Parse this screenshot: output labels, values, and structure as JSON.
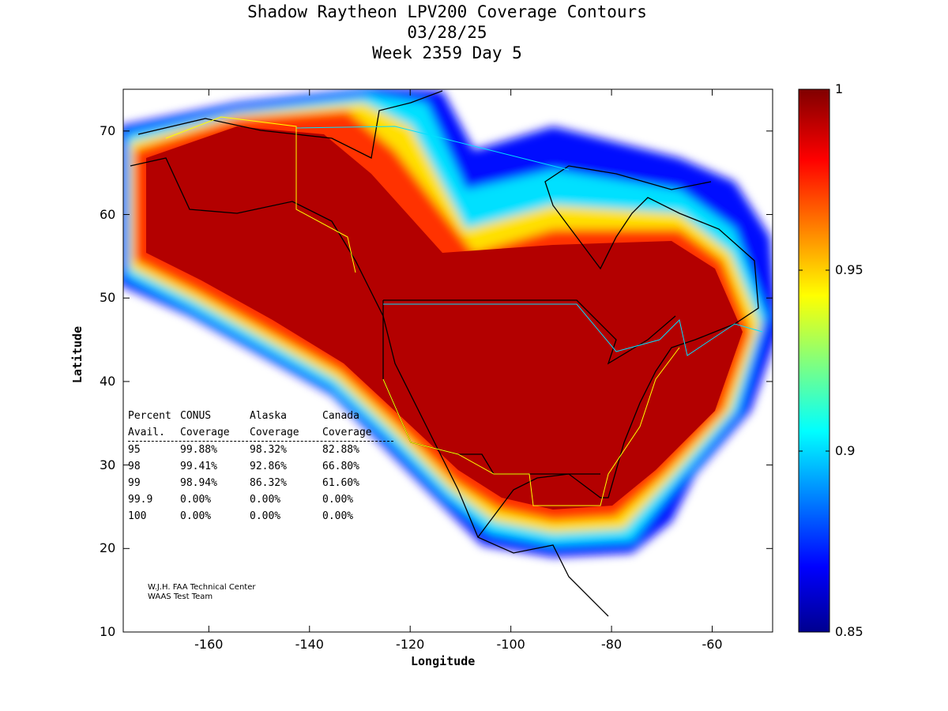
{
  "chart_data": {
    "type": "heatmap",
    "title": [
      "Shadow Raytheon LPV200 Coverage Contours",
      "03/28/25",
      "Week 2359 Day 5"
    ],
    "xlabel": "Longitude",
    "ylabel": "Latitude",
    "xlim": [
      -177,
      -48
    ],
    "ylim": [
      10,
      75
    ],
    "xticks": [
      -160,
      -140,
      -120,
      -100,
      -80,
      -60
    ],
    "yticks": [
      10,
      20,
      30,
      40,
      50,
      60,
      70
    ],
    "colorbar": {
      "min": 0.85,
      "max": 1,
      "ticks": [
        0.85,
        0.9,
        0.95,
        1
      ],
      "tick_labels": [
        "0.85",
        "0.9",
        "0.95",
        "1"
      ],
      "colormap": "jet"
    },
    "table": {
      "header1": [
        "Percent",
        "CONUS",
        "Alaska",
        "Canada"
      ],
      "header2": [
        "Avail.",
        "Coverage",
        "Coverage",
        "Coverage"
      ],
      "rows": [
        [
          "95",
          "99.88%",
          "98.32%",
          "82.88%"
        ],
        [
          "98",
          "99.41%",
          "92.86%",
          "66.80%"
        ],
        [
          "99",
          "98.94%",
          "86.32%",
          "61.60%"
        ],
        [
          "99.9",
          "0.00%",
          "0.00%",
          "0.00%"
        ],
        [
          "100",
          "0.00%",
          "0.00%",
          "0.00%"
        ]
      ]
    },
    "credits": [
      "W.J.H. FAA Technical Center",
      "WAAS Test Team"
    ]
  }
}
